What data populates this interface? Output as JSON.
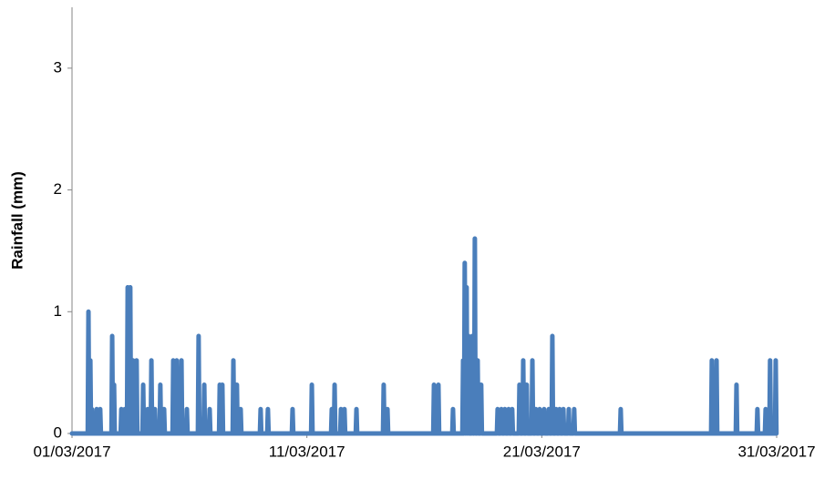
{
  "chart_data": {
    "type": "line",
    "ylabel": "Rainfall (mm)",
    "xlim": [
      1,
      31
    ],
    "xticks": [
      {
        "value": 1,
        "label": "01/03/2017"
      },
      {
        "value": 11,
        "label": "11/03/2017"
      },
      {
        "value": 21,
        "label": "21/03/2017"
      },
      {
        "value": 31,
        "label": "31/03/2017"
      }
    ],
    "ylim": [
      0,
      3.5
    ],
    "yticks": [
      0,
      1,
      2,
      3
    ],
    "grid": false,
    "x": [
      1,
      1.67,
      1.7,
      1.73,
      1.75,
      1.78,
      1.81,
      1.82,
      1.85,
      1.88,
      2.02,
      2.05,
      2.08,
      2.17,
      2.2,
      2.23,
      2.68,
      2.71,
      2.74,
      2.76,
      2.79,
      2.82,
      3.07,
      3.1,
      3.13,
      3.22,
      3.25,
      3.28,
      3.34,
      3.37,
      3.4,
      3.45,
      3.48,
      3.51,
      3.57,
      3.6,
      3.63,
      3.72,
      3.75,
      3.78,
      4.0,
      4.03,
      4.06,
      4.19,
      4.22,
      4.25,
      4.35,
      4.38,
      4.41,
      4.5,
      4.53,
      4.56,
      4.73,
      4.76,
      4.79,
      4.89,
      4.92,
      4.95,
      5.28,
      5.31,
      5.34,
      5.43,
      5.46,
      5.49,
      5.63,
      5.66,
      5.69,
      5.86,
      5.89,
      5.92,
      6.36,
      6.39,
      6.42,
      6.6,
      6.63,
      6.66,
      6.83,
      6.86,
      6.89,
      7.26,
      7.29,
      7.32,
      7.37,
      7.4,
      7.43,
      7.84,
      7.87,
      7.9,
      7.99,
      8.02,
      8.05,
      8.15,
      8.18,
      8.21,
      9.0,
      9.03,
      9.06,
      9.31,
      9.34,
      9.37,
      10.36,
      10.39,
      10.42,
      11.18,
      11.21,
      11.24,
      12.03,
      12.06,
      12.09,
      12.15,
      12.18,
      12.21,
      12.42,
      12.45,
      12.48,
      12.57,
      12.6,
      12.63,
      13.08,
      13.11,
      13.14,
      14.24,
      14.27,
      14.3,
      14.4,
      14.43,
      14.46,
      16.38,
      16.41,
      16.44,
      16.57,
      16.6,
      16.63,
      17.19,
      17.22,
      17.25,
      17.62,
      17.65,
      17.68,
      17.69,
      17.72,
      17.75,
      17.77,
      17.8,
      17.83,
      17.85,
      17.88,
      17.91,
      18.01,
      18.04,
      18.07,
      18.12,
      18.15,
      18.18,
      18.24,
      18.27,
      18.3,
      18.39,
      18.42,
      18.45,
      19.09,
      19.12,
      19.15,
      19.25,
      19.28,
      19.31,
      19.4,
      19.43,
      19.46,
      19.56,
      19.59,
      19.62,
      19.71,
      19.74,
      19.77,
      20.02,
      20.05,
      20.08,
      20.18,
      20.21,
      20.24,
      20.33,
      20.36,
      20.39,
      20.57,
      20.6,
      20.63,
      20.72,
      20.75,
      20.78,
      20.88,
      20.91,
      20.94,
      21.07,
      21.1,
      21.13,
      21.27,
      21.3,
      21.33,
      21.42,
      21.45,
      21.48,
      21.58,
      21.61,
      21.64,
      21.73,
      21.76,
      21.79,
      21.89,
      21.92,
      21.95,
      22.12,
      22.15,
      22.18,
      22.35,
      22.38,
      22.41,
      24.33,
      24.36,
      24.39,
      28.21,
      28.24,
      28.27,
      28.41,
      28.44,
      28.47,
      29.26,
      29.29,
      29.32,
      30.15,
      30.18,
      30.21,
      30.5,
      30.53,
      30.56,
      30.69,
      30.72,
      30.75,
      30.93,
      30.96,
      30.99
    ],
    "series": [
      {
        "color": "#4a7ebb",
        "values": [
          0,
          0,
          1.0,
          0,
          0,
          0.6,
          0,
          0,
          0.2,
          0,
          0,
          0.2,
          0,
          0,
          0.2,
          0,
          0,
          0.8,
          0,
          0,
          0.4,
          0,
          0,
          0.2,
          0,
          0,
          0.2,
          0,
          0,
          1.2,
          0,
          0,
          1.2,
          0,
          0,
          0.6,
          0,
          0,
          0.6,
          0,
          0,
          0.4,
          0,
          0,
          0.2,
          0,
          0,
          0.6,
          0,
          0,
          0.2,
          0,
          0,
          0.4,
          0,
          0,
          0.2,
          0,
          0,
          0.6,
          0,
          0,
          0.6,
          0,
          0,
          0.6,
          0,
          0,
          0.2,
          0,
          0,
          0.8,
          0,
          0,
          0.4,
          0,
          0,
          0.2,
          0,
          0,
          0.4,
          0,
          0,
          0.4,
          0,
          0,
          0.6,
          0,
          0,
          0.4,
          0,
          0,
          0.2,
          0,
          0,
          0.2,
          0,
          0,
          0.2,
          0,
          0,
          0.2,
          0,
          0,
          0.4,
          0,
          0,
          0.2,
          0,
          0,
          0.4,
          0,
          0,
          0.2,
          0,
          0,
          0.2,
          0,
          0,
          0.2,
          0,
          0,
          0.4,
          0,
          0,
          0.2,
          0,
          0,
          0.4,
          0,
          0,
          0.4,
          0,
          0,
          0.2,
          0,
          0,
          0.6,
          0,
          0,
          1.4,
          0,
          0,
          1.2,
          0,
          0,
          0.8,
          0,
          0,
          0.8,
          0,
          0,
          1.6,
          0,
          0,
          0.6,
          0,
          0,
          0.4,
          0,
          0,
          0.2,
          0,
          0,
          0.2,
          0,
          0,
          0.2,
          0,
          0,
          0.2,
          0,
          0,
          0.2,
          0,
          0,
          0.4,
          0,
          0,
          0.6,
          0,
          0,
          0.4,
          0,
          0,
          0.6,
          0,
          0,
          0.2,
          0,
          0,
          0.2,
          0,
          0,
          0.2,
          0,
          0,
          0.2,
          0,
          0,
          0.8,
          0,
          0,
          0.2,
          0,
          0,
          0.2,
          0,
          0,
          0.2,
          0,
          0,
          0.2,
          0,
          0,
          0.2,
          0,
          0,
          0.2,
          0,
          0,
          0.6,
          0,
          0,
          0.6,
          0,
          0,
          0.4,
          0,
          0,
          0.2,
          0,
          0,
          0.2,
          0,
          0,
          0.6,
          0,
          0,
          0.6,
          0
        ]
      }
    ]
  }
}
